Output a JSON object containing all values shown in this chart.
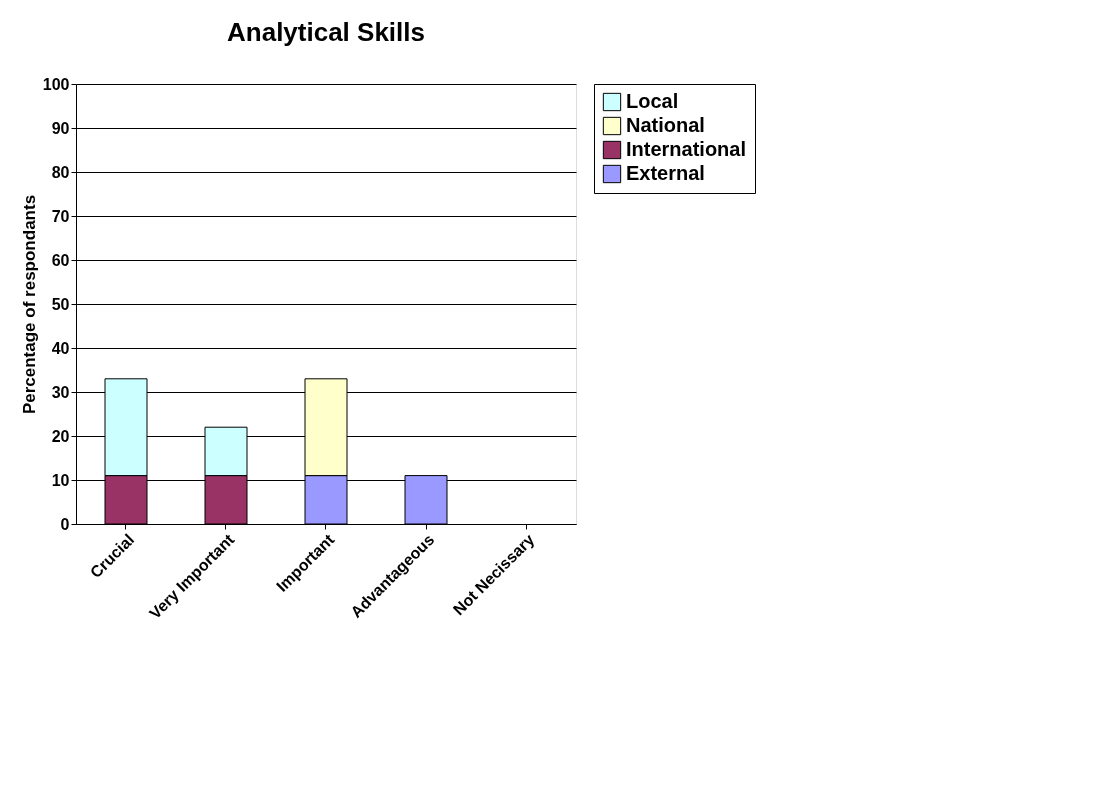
{
  "chart_data": {
    "type": "bar",
    "title": "Analytical Skills",
    "ylabel": "Percentage of respondants",
    "categories": [
      "Crucial",
      "Very Important",
      "Important",
      "Advantageous",
      "Not Necissary"
    ],
    "stacked": true,
    "series": [
      {
        "name": "External",
        "color": "#9999ff",
        "values": [
          null,
          null,
          11,
          11,
          null
        ]
      },
      {
        "name": "International",
        "color": "#993366",
        "values": [
          11,
          11,
          null,
          null,
          null
        ]
      },
      {
        "name": "National",
        "color": "#ffffcc",
        "values": [
          null,
          null,
          22,
          null,
          null
        ]
      },
      {
        "name": "Local",
        "color": "#ccffff",
        "values": [
          22,
          11,
          null,
          null,
          null
        ]
      }
    ],
    "ylim": [
      0,
      100
    ],
    "yticks": [
      0,
      10,
      20,
      30,
      40,
      50,
      60,
      70,
      80,
      90,
      100
    ],
    "grid": "y",
    "legend": "right"
  }
}
